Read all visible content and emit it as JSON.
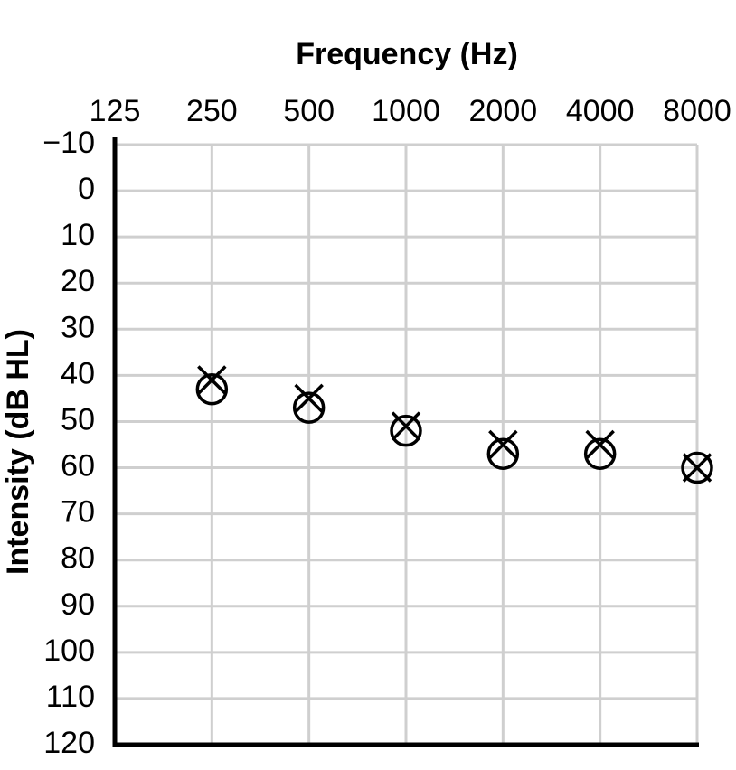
{
  "chart_data": {
    "type": "scatter",
    "title": "Frequency (Hz)",
    "y_label": "Intensity (dB HL)",
    "x": [
      125,
      250,
      500,
      1000,
      2000,
      4000,
      8000
    ],
    "xscale": "log",
    "xlim": [
      125,
      8000
    ],
    "xticks": [
      125,
      250,
      500,
      1000,
      2000,
      4000,
      8000
    ],
    "ylim": [
      -10,
      120
    ],
    "y_inverted": true,
    "yticks": [
      {
        "value": -10,
        "label": "−10"
      },
      0,
      10,
      20,
      30,
      40,
      50,
      60,
      70,
      80,
      90,
      100,
      110,
      120
    ],
    "grid": true,
    "series": [
      {
        "marker": "circle",
        "color": "#000000",
        "values": [
          null,
          43,
          47,
          52,
          57,
          57,
          60
        ]
      },
      {
        "marker": "x",
        "color": "#000000",
        "values": [
          null,
          41,
          45,
          51,
          55,
          55,
          60
        ]
      }
    ]
  }
}
